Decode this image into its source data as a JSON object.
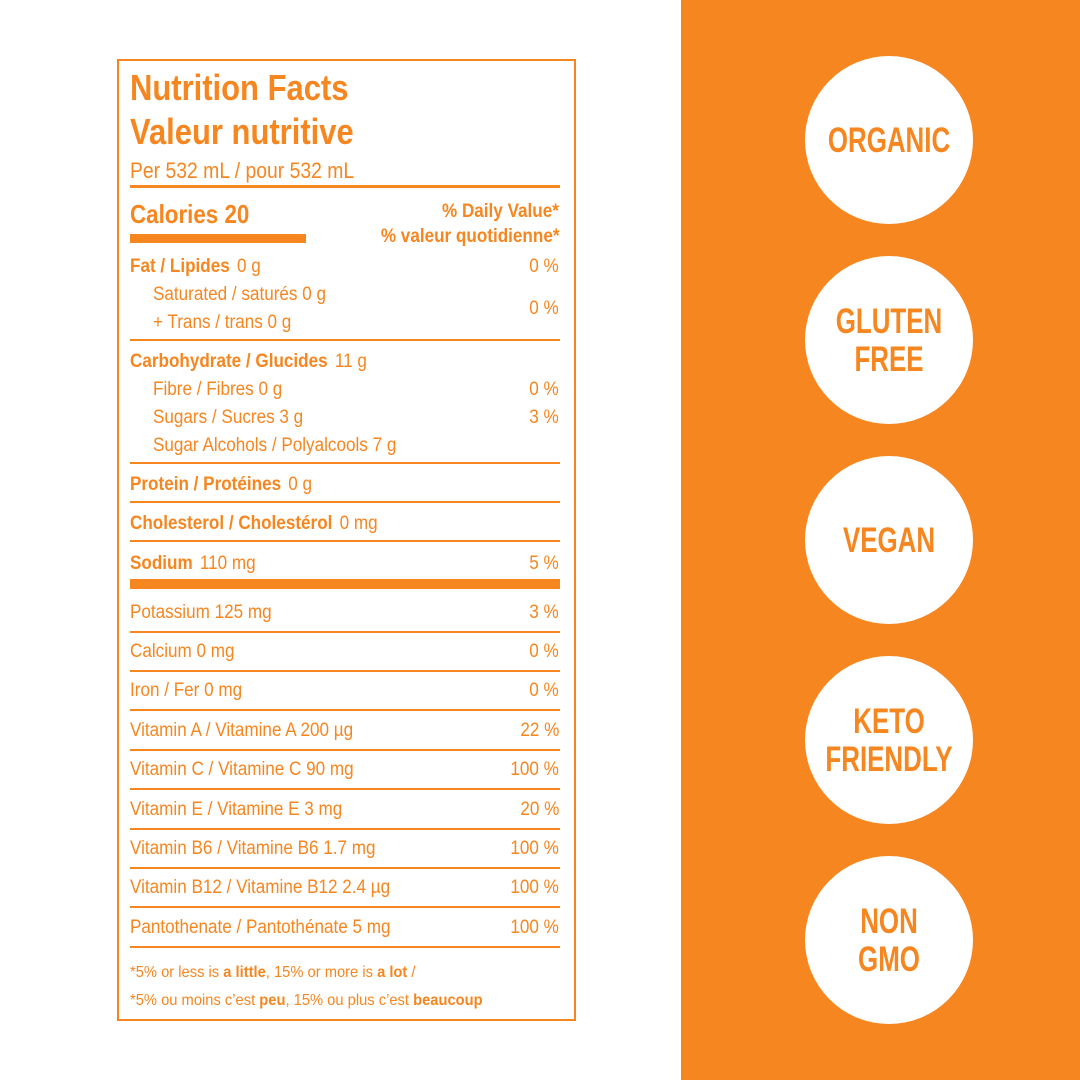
{
  "label": {
    "title": [
      "Nutrition Facts",
      "Valeur nutritive"
    ],
    "serving": "Per 532 mL / pour 532 mL",
    "calories": "Calories 20",
    "daily_value": [
      "% Daily Value*",
      "% valeur quotidienne*"
    ],
    "fat": {
      "name": "Fat / Lipides",
      "amount": "0 g",
      "dv": "0 %"
    },
    "sat_trans": {
      "lines": [
        "Saturated / saturés 0 g",
        "+ Trans / trans 0 g"
      ],
      "dv": "0 %"
    },
    "carbohydrate": {
      "name": "Carbohydrate / Glucides",
      "amount": "11 g"
    },
    "carb_details": [
      {
        "text": "Fibre / Fibres 0 g",
        "dv": "0 %"
      },
      {
        "text": "Sugars / Sucres 3 g",
        "dv": "3 %"
      },
      {
        "text": "Sugar Alcohols / Polyalcools 7 g"
      }
    ],
    "protein": {
      "name": "Protein / Protéines",
      "amount": "0 g"
    },
    "cholesterol": {
      "name": "Cholesterol / Cholestérol",
      "amount": "0 mg"
    },
    "sodium": {
      "name": "Sodium",
      "amount": "110 mg",
      "dv": "5 %"
    },
    "micronutrients": [
      {
        "text": "Potassium 125 mg",
        "dv": "3 %"
      },
      {
        "text": "Calcium 0 mg",
        "dv": "0 %"
      },
      {
        "text": "Iron / Fer 0 mg",
        "dv": "0 %"
      },
      {
        "text": "Vitamin A / Vitamine A 200 µg",
        "dv": "22 %"
      },
      {
        "text": "Vitamin C / Vitamine C 90 mg",
        "dv": "100 %"
      },
      {
        "text": "Vitamin E / Vitamine E 3 mg",
        "dv": "20 %"
      },
      {
        "text": "Vitamin B6 / Vitamine B6 1.7 mg",
        "dv": "100 %"
      },
      {
        "text": "Vitamin B12 / Vitamine B12 2.4 µg",
        "dv": "100 %"
      },
      {
        "text": "Pantothenate / Pantothénate 5 mg",
        "dv": "100 %"
      }
    ],
    "footnote": [
      [
        "*5% or less is ",
        "a little",
        ", 15% or more is ",
        "a lot",
        " /"
      ],
      [
        "*5% ou moins c’est ",
        "peu",
        ", 15% ou plus c’est ",
        "beaucoup"
      ]
    ]
  },
  "badges": [
    [
      "ORGANIC"
    ],
    [
      "GLUTEN",
      "FREE"
    ],
    [
      "VEGAN"
    ],
    [
      "KETO",
      "FRIENDLY"
    ],
    [
      "NON",
      "GMO"
    ]
  ]
}
